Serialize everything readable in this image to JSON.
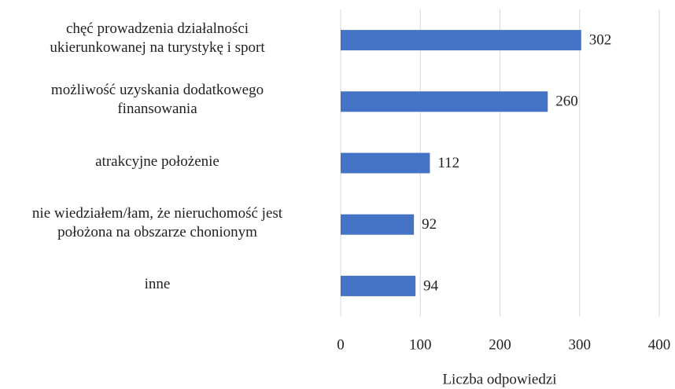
{
  "chart_data": {
    "type": "hbar",
    "categories": [
      "chęć prowadzenia działalności\nukierunkowanej na turystykę i sport",
      "możliwość uzyskania dodatkowego\nfinansowania",
      "atrakcyjne położenie",
      "nie wiedziałem/łam, że nieruchomość jest\npołożona na obszarze chonionym",
      "inne"
    ],
    "values": [
      302,
      260,
      112,
      92,
      94
    ],
    "color": "#4472c4",
    "xlim": [
      0,
      400
    ],
    "xticks": [
      0,
      100,
      200,
      300,
      400
    ],
    "xlabel": "Liczba odpowiedzi",
    "grid": true
  }
}
